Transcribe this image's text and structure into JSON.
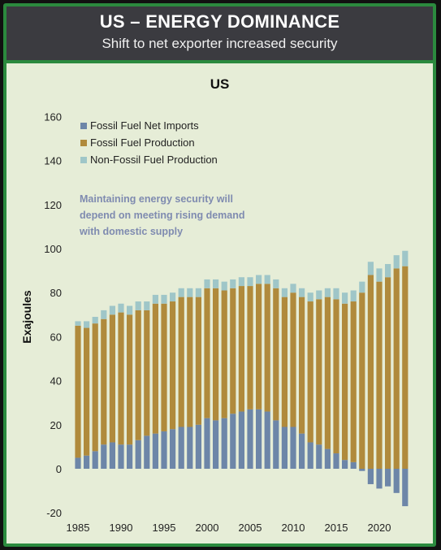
{
  "header": {
    "title": "US – ENERGY DOMINANCE",
    "subtitle": "Shift to net exporter increased security"
  },
  "colors": {
    "net_imports": "#6d86a8",
    "fossil_production": "#b08a3c",
    "non_fossil_production": "#9fc6c8",
    "annotation": "#7f8bb0",
    "panel_bg": "#e6edd7",
    "header_bg": "#3b3b40",
    "border": "#2b8a3e"
  },
  "chart_data": {
    "type": "bar",
    "title": "US",
    "ylabel": "Exajoules",
    "xlabel": "",
    "ylim": [
      -20,
      160
    ],
    "yticks": [
      -20,
      0,
      20,
      40,
      60,
      80,
      100,
      120,
      140,
      160
    ],
    "xticks": [
      1985,
      1990,
      1995,
      2000,
      2005,
      2010,
      2015,
      2020
    ],
    "legend_position": "top-left",
    "grid": false,
    "annotation": "Maintaining energy security will depend on meeting rising demand with domestic supply",
    "categories": [
      1985,
      1986,
      1987,
      1988,
      1989,
      1990,
      1991,
      1992,
      1993,
      1994,
      1995,
      1996,
      1997,
      1998,
      1999,
      2000,
      2001,
      2002,
      2003,
      2004,
      2005,
      2006,
      2007,
      2008,
      2009,
      2010,
      2011,
      2012,
      2013,
      2014,
      2015,
      2016,
      2017,
      2018,
      2019,
      2020,
      2021,
      2022,
      2023
    ],
    "series": [
      {
        "name": "Fossil Fuel Net Imports",
        "values": [
          5,
          6,
          8,
          11,
          12,
          11,
          11,
          13,
          15,
          16,
          17,
          18,
          19,
          19,
          20,
          23,
          22,
          23,
          25,
          26,
          27,
          27,
          26,
          22,
          19,
          19,
          16,
          12,
          11,
          9,
          7,
          4,
          3,
          -1,
          -7,
          -9,
          -8,
          -11,
          -17
        ]
      },
      {
        "name": "Fossil Fuel Production",
        "values": [
          60,
          58,
          58,
          57,
          58,
          60,
          59,
          59,
          57,
          59,
          58,
          58,
          59,
          59,
          58,
          59,
          60,
          58,
          57,
          57,
          56,
          57,
          58,
          60,
          59,
          61,
          62,
          64,
          66,
          69,
          70,
          71,
          73,
          80,
          88,
          85,
          87,
          91,
          92
        ]
      },
      {
        "name": "Non-Fossil Fuel Production",
        "values": [
          2,
          3,
          3,
          4,
          4,
          4,
          4,
          4,
          4,
          4,
          4,
          4,
          4,
          4,
          4,
          4,
          4,
          4,
          4,
          4,
          4,
          4,
          4,
          4,
          4,
          4,
          4,
          4,
          4,
          4,
          5,
          5,
          5,
          5,
          6,
          6,
          6,
          6,
          7
        ]
      }
    ]
  }
}
